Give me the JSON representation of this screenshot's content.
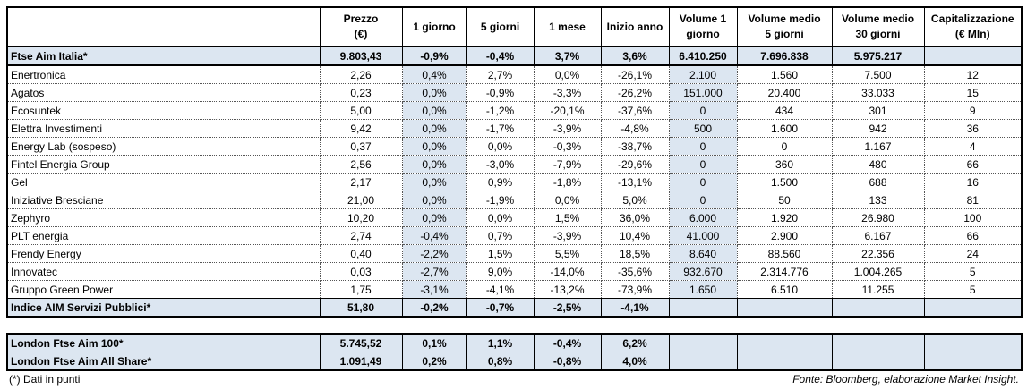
{
  "headers": [
    "",
    "Prezzo\n(€)",
    "1 giorno",
    "5 giorni",
    "1 mese",
    "Inizio anno",
    "Volume 1\ngiorno",
    "Volume medio\n5 giorni",
    "Volume medio\n30 giorni",
    "Capitalizzazione\n(€ Mln)"
  ],
  "main_rows": [
    {
      "bold": true,
      "cells": [
        "Ftse Aim Italia*",
        "9.803,43",
        "-0,9%",
        "-0,4%",
        "3,7%",
        "3,6%",
        "6.410.250",
        "7.696.838",
        "5.975.217",
        ""
      ]
    },
    {
      "cells": [
        "Enertronica",
        "2,26",
        "0,4%",
        "2,7%",
        "0,0%",
        "-26,1%",
        "2.100",
        "1.560",
        "7.500",
        "12"
      ]
    },
    {
      "cells": [
        "Agatos",
        "0,23",
        "0,0%",
        "-0,9%",
        "-3,3%",
        "-26,2%",
        "151.000",
        "20.400",
        "33.033",
        "15"
      ]
    },
    {
      "cells": [
        "Ecosuntek",
        "5,00",
        "0,0%",
        "-1,2%",
        "-20,1%",
        "-37,6%",
        "0",
        "434",
        "301",
        "9"
      ]
    },
    {
      "cells": [
        "Elettra Investimenti",
        "9,42",
        "0,0%",
        "-1,7%",
        "-3,9%",
        "-4,8%",
        "500",
        "1.600",
        "942",
        "36"
      ]
    },
    {
      "cells": [
        "Energy Lab (sospeso)",
        "0,37",
        "0,0%",
        "0,0%",
        "-0,3%",
        "-38,7%",
        "0",
        "0",
        "1.167",
        "4"
      ]
    },
    {
      "cells": [
        "Fintel Energia Group",
        "2,56",
        "0,0%",
        "-3,0%",
        "-7,9%",
        "-29,6%",
        "0",
        "360",
        "480",
        "66"
      ]
    },
    {
      "cells": [
        "Gel",
        "2,17",
        "0,0%",
        "0,9%",
        "-1,8%",
        "-13,1%",
        "0",
        "1.500",
        "688",
        "16"
      ]
    },
    {
      "cells": [
        "Iniziative Bresciane",
        "21,00",
        "0,0%",
        "-1,9%",
        "0,0%",
        "5,0%",
        "0",
        "50",
        "133",
        "81"
      ]
    },
    {
      "cells": [
        "Zephyro",
        "10,20",
        "0,0%",
        "0,0%",
        "1,5%",
        "36,0%",
        "6.000",
        "1.920",
        "26.980",
        "100"
      ]
    },
    {
      "cells": [
        "PLT energia",
        "2,74",
        "-0,4%",
        "0,7%",
        "-3,9%",
        "10,4%",
        "41.000",
        "2.900",
        "6.167",
        "66"
      ]
    },
    {
      "cells": [
        "Frendy Energy",
        "0,40",
        "-2,2%",
        "1,5%",
        "5,5%",
        "18,5%",
        "8.640",
        "88.560",
        "22.356",
        "24"
      ]
    },
    {
      "cells": [
        "Innovatec",
        "0,03",
        "-2,7%",
        "9,0%",
        "-14,0%",
        "-35,6%",
        "932.670",
        "2.314.776",
        "1.004.265",
        "5"
      ]
    },
    {
      "cells": [
        "Gruppo Green Power",
        "1,75",
        "-3,1%",
        "-4,1%",
        "-13,2%",
        "-73,9%",
        "1.650",
        "6.510",
        "11.255",
        "5"
      ]
    },
    {
      "bold": true,
      "cells": [
        "Indice AIM Servizi Pubblici*",
        "51,80",
        "-0,2%",
        "-0,7%",
        "-2,5%",
        "-4,1%",
        "",
        "",
        "",
        ""
      ]
    }
  ],
  "london_rows": [
    {
      "bold": true,
      "cells": [
        "London Ftse Aim 100*",
        "5.745,52",
        "0,1%",
        "1,1%",
        "-0,4%",
        "6,2%",
        "",
        "",
        "",
        ""
      ]
    },
    {
      "bold": true,
      "cells": [
        "London Ftse Aim All Share*",
        "1.091,49",
        "0,2%",
        "0,8%",
        "-0,8%",
        "4,0%",
        "",
        "",
        "",
        ""
      ]
    }
  ],
  "footnote": "(*) Dati in punti",
  "source": "Fonte: Bloomberg, elaborazione Market Insight.",
  "colors": {
    "highlight": "#dce6f1"
  }
}
